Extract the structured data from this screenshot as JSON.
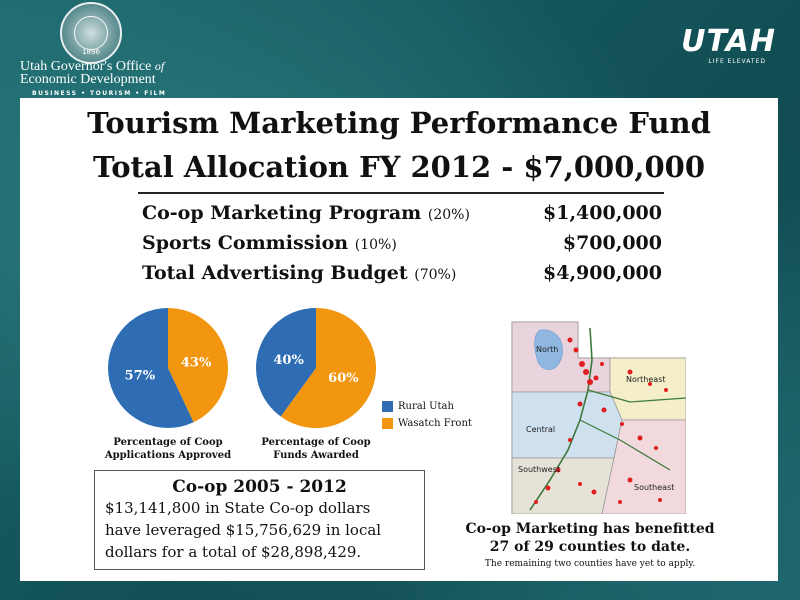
{
  "header": {
    "seal_year": "1896",
    "office_line1": "Utah Governor's Office",
    "office_of": "of",
    "office_line2": "Economic Development",
    "office_sub": "BUSINESS • TOURISM • FILM",
    "utah_logo": "UTAH",
    "utah_tagline": "LIFE ELEVATED"
  },
  "title_line1": "Tourism Marketing Performance Fund",
  "title_line2": "Total Allocation FY 2012  -  $7,000,000",
  "allocations": [
    {
      "name": "Co-op Marketing Program",
      "pct": "(20%)",
      "amount": "$1,400,000"
    },
    {
      "name": "Sports Commission",
      "pct": "(10%)",
      "amount": "$700,000"
    },
    {
      "name": "Total Advertising Budget",
      "pct": "(70%)",
      "amount": "$4,900,000"
    }
  ],
  "chart_data": [
    {
      "type": "pie",
      "title": "Percentage of Coop Applications Approved",
      "categories": [
        "Rural Utah",
        "Wasatch Front"
      ],
      "values": [
        57,
        43
      ],
      "labels": [
        "57%",
        "43%"
      ],
      "colors": [
        "#2e6db4",
        "#f2960f"
      ]
    },
    {
      "type": "pie",
      "title": "Percentage of Coop Funds Awarded",
      "categories": [
        "Rural Utah",
        "Wasatch Front"
      ],
      "values": [
        40,
        60
      ],
      "labels": [
        "40%",
        "60%"
      ],
      "colors": [
        "#2e6db4",
        "#f2960f"
      ]
    }
  ],
  "pie_captions": [
    {
      "line1": "Percentage of Coop",
      "line2": "Applications Approved"
    },
    {
      "line1": "Percentage of Coop",
      "line2": "Funds Awarded"
    }
  ],
  "legend": [
    {
      "label": "Rural Utah",
      "color": "#2e6db4"
    },
    {
      "label": "Wasatch Front",
      "color": "#f2960f"
    }
  ],
  "coop": {
    "title": "Co-op 2005 - 2012",
    "lines": [
      "$13,141,800 in State Co-op dollars",
      "have leveraged $15,756,629 in local",
      "dollars for a total of $28,898,429."
    ]
  },
  "map": {
    "regions": [
      "North",
      "Northeast",
      "Central",
      "Southwest",
      "Southeast"
    ],
    "caption_line1": "Co-op Marketing has benefitted",
    "caption_line2": "27 of 29 counties to date.",
    "note": "The remaining two counties have yet to apply."
  }
}
